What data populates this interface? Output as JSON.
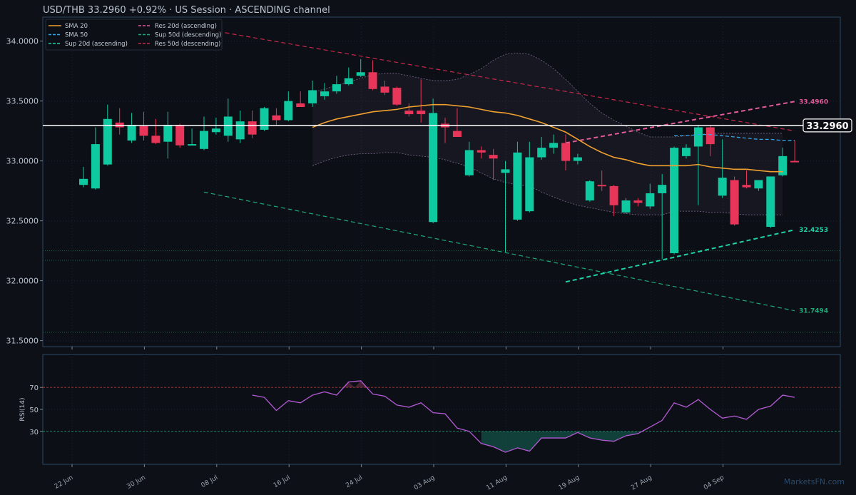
{
  "header": {
    "pair": "USD/THB",
    "price": "33.2960",
    "change": "+0.92%",
    "session": "US Session",
    "channel": "ASCENDING channel",
    "sep": "·"
  },
  "watermark": "MarketsFN.com",
  "colors": {
    "bg": "#0d1017",
    "panel_border": "#2b4a66",
    "up": "#0fc9a0",
    "down": "#e8365a",
    "sma20": "#f0a030",
    "sma50": "#2fa5e8",
    "res_asc": "#e35a9a",
    "res_desc": "#c8284a",
    "sup_asc": "#1fd2a6",
    "sup_desc": "#1fa878",
    "rsi": "#b45ad6",
    "price_line": "#ffffff",
    "text": "#b9c3cf"
  },
  "chart_data": [
    {
      "type": "candlestick",
      "title": "USD/THB",
      "ylim": [
        31.45,
        34.2
      ],
      "y_ticks": [
        31.5,
        32.0,
        32.5,
        33.0,
        33.5,
        34.0
      ],
      "y_tick_labels": [
        "31.5000",
        "32.0000",
        "32.5000",
        "33.0000",
        "33.5000",
        "34.0000"
      ],
      "x_tick_labels": [
        "22 Jun",
        "30 Jun",
        "08 Jul",
        "16 Jul",
        "24 Jul",
        "03 Aug",
        "11 Aug",
        "19 Aug",
        "27 Aug",
        "04 Sep"
      ],
      "x_tick_index": [
        0,
        6,
        12,
        18,
        24,
        30,
        36,
        42,
        48,
        54
      ],
      "grid": true,
      "legend_position": "top-left",
      "current_price": 33.296,
      "current_price_label": "33.2960",
      "candles": [
        {
          "o": 32.8,
          "h": 32.95,
          "l": 32.78,
          "c": 32.85
        },
        {
          "o": 32.77,
          "h": 33.28,
          "l": 32.76,
          "c": 33.14
        },
        {
          "o": 32.97,
          "h": 33.47,
          "l": 32.96,
          "c": 33.35
        },
        {
          "o": 33.32,
          "h": 33.44,
          "l": 33.22,
          "c": 33.28
        },
        {
          "o": 33.17,
          "h": 33.4,
          "l": 33.15,
          "c": 33.3
        },
        {
          "o": 33.29,
          "h": 33.41,
          "l": 33.17,
          "c": 33.21
        },
        {
          "o": 33.21,
          "h": 33.35,
          "l": 33.14,
          "c": 33.15
        },
        {
          "o": 33.16,
          "h": 33.41,
          "l": 33.02,
          "c": 33.3
        },
        {
          "o": 33.3,
          "h": 33.31,
          "l": 33.11,
          "c": 33.13
        },
        {
          "o": 33.14,
          "h": 33.27,
          "l": 33.13,
          "c": 33.14
        },
        {
          "o": 33.1,
          "h": 33.37,
          "l": 33.09,
          "c": 33.25
        },
        {
          "o": 33.24,
          "h": 33.36,
          "l": 33.22,
          "c": 33.27
        },
        {
          "o": 33.21,
          "h": 33.52,
          "l": 33.16,
          "c": 33.37
        },
        {
          "o": 33.18,
          "h": 33.42,
          "l": 33.15,
          "c": 33.33
        },
        {
          "o": 33.33,
          "h": 33.42,
          "l": 33.19,
          "c": 33.22
        },
        {
          "o": 33.26,
          "h": 33.45,
          "l": 33.25,
          "c": 33.44
        },
        {
          "o": 33.38,
          "h": 33.44,
          "l": 33.3,
          "c": 33.34
        },
        {
          "o": 33.34,
          "h": 33.58,
          "l": 33.33,
          "c": 33.5
        },
        {
          "o": 33.48,
          "h": 33.58,
          "l": 33.45,
          "c": 33.45
        },
        {
          "o": 33.48,
          "h": 33.67,
          "l": 33.45,
          "c": 33.59
        },
        {
          "o": 33.54,
          "h": 33.65,
          "l": 33.51,
          "c": 33.58
        },
        {
          "o": 33.58,
          "h": 33.71,
          "l": 33.56,
          "c": 33.64
        },
        {
          "o": 33.64,
          "h": 33.78,
          "l": 33.63,
          "c": 33.69
        },
        {
          "o": 33.71,
          "h": 33.85,
          "l": 33.7,
          "c": 33.74
        },
        {
          "o": 33.74,
          "h": 33.84,
          "l": 33.59,
          "c": 33.6
        },
        {
          "o": 33.62,
          "h": 33.67,
          "l": 33.55,
          "c": 33.57
        },
        {
          "o": 33.61,
          "h": 33.62,
          "l": 33.46,
          "c": 33.47
        },
        {
          "o": 33.42,
          "h": 33.48,
          "l": 33.37,
          "c": 33.39
        },
        {
          "o": 33.42,
          "h": 33.68,
          "l": 33.32,
          "c": 33.39
        },
        {
          "o": 32.49,
          "h": 33.52,
          "l": 32.48,
          "c": 33.4
        },
        {
          "o": 33.31,
          "h": 33.36,
          "l": 33.15,
          "c": 33.28
        },
        {
          "o": 33.25,
          "h": 33.44,
          "l": 33.2,
          "c": 33.2
        },
        {
          "o": 32.88,
          "h": 33.16,
          "l": 32.87,
          "c": 33.09
        },
        {
          "o": 33.09,
          "h": 33.12,
          "l": 33.02,
          "c": 33.07
        },
        {
          "o": 33.05,
          "h": 33.1,
          "l": 32.84,
          "c": 33.02
        },
        {
          "o": 32.9,
          "h": 33.0,
          "l": 32.24,
          "c": 32.93
        },
        {
          "o": 32.51,
          "h": 33.16,
          "l": 32.5,
          "c": 33.07
        },
        {
          "o": 32.58,
          "h": 33.16,
          "l": 32.57,
          "c": 33.03
        },
        {
          "o": 33.03,
          "h": 33.2,
          "l": 33.01,
          "c": 33.11
        },
        {
          "o": 33.11,
          "h": 33.22,
          "l": 33.06,
          "c": 33.15
        },
        {
          "o": 33.15,
          "h": 33.22,
          "l": 32.92,
          "c": 33.0
        },
        {
          "o": 33.0,
          "h": 33.06,
          "l": 32.97,
          "c": 33.03
        },
        {
          "o": 32.67,
          "h": 32.84,
          "l": 32.66,
          "c": 32.83
        },
        {
          "o": 32.8,
          "h": 32.92,
          "l": 32.75,
          "c": 32.79
        },
        {
          "o": 32.79,
          "h": 32.8,
          "l": 32.54,
          "c": 32.63
        },
        {
          "o": 32.57,
          "h": 32.69,
          "l": 32.56,
          "c": 32.67
        },
        {
          "o": 32.67,
          "h": 32.69,
          "l": 32.62,
          "c": 32.65
        },
        {
          "o": 32.62,
          "h": 32.81,
          "l": 32.6,
          "c": 32.73
        },
        {
          "o": 32.73,
          "h": 32.89,
          "l": 32.18,
          "c": 32.8
        },
        {
          "o": 32.23,
          "h": 33.12,
          "l": 32.22,
          "c": 33.11
        },
        {
          "o": 33.04,
          "h": 33.14,
          "l": 33.02,
          "c": 33.11
        },
        {
          "o": 33.12,
          "h": 33.3,
          "l": 32.63,
          "c": 33.28
        },
        {
          "o": 33.28,
          "h": 33.3,
          "l": 33.04,
          "c": 33.14
        },
        {
          "o": 32.71,
          "h": 33.18,
          "l": 32.69,
          "c": 32.86
        },
        {
          "o": 32.84,
          "h": 32.87,
          "l": 32.46,
          "c": 32.47
        },
        {
          "o": 32.8,
          "h": 32.92,
          "l": 32.77,
          "c": 32.78
        },
        {
          "o": 32.77,
          "h": 32.84,
          "l": 32.75,
          "c": 32.84
        },
        {
          "o": 32.45,
          "h": 32.87,
          "l": 32.44,
          "c": 32.87
        },
        {
          "o": 32.88,
          "h": 33.11,
          "l": 32.87,
          "c": 33.04
        },
        {
          "o": 33.0,
          "h": 33.17,
          "l": 32.99,
          "c": 32.99
        }
      ],
      "sma20": {
        "start": 19,
        "values": [
          33.28,
          33.32,
          33.35,
          33.37,
          33.39,
          33.41,
          33.42,
          33.43,
          33.45,
          33.46,
          33.47,
          33.47,
          33.46,
          33.45,
          33.43,
          33.41,
          33.4,
          33.38,
          33.35,
          33.32,
          33.28,
          33.24,
          33.18,
          33.12,
          33.07,
          33.03,
          33.01,
          32.98,
          32.96,
          32.96,
          32.96,
          32.96,
          32.97,
          32.95,
          32.94,
          32.93,
          32.93,
          32.92,
          32.91,
          32.91
        ]
      },
      "bollinger": {
        "start": 19,
        "upper": [
          33.57,
          33.6,
          33.63,
          33.66,
          33.69,
          33.72,
          33.73,
          33.73,
          33.71,
          33.69,
          33.67,
          33.67,
          33.68,
          33.72,
          33.77,
          33.84,
          33.89,
          33.9,
          33.89,
          33.84,
          33.77,
          33.68,
          33.58,
          33.48,
          33.4,
          33.34,
          33.29,
          33.24,
          33.2,
          33.2,
          33.2,
          33.21,
          33.22,
          33.23,
          33.23,
          33.23,
          33.23,
          33.23,
          33.23,
          33.23
        ],
        "lower": [
          32.96,
          33.0,
          33.03,
          33.05,
          33.06,
          33.06,
          33.07,
          33.07,
          33.05,
          33.04,
          33.03,
          33.01,
          32.98,
          32.95,
          32.9,
          32.85,
          32.82,
          32.8,
          32.79,
          32.74,
          32.7,
          32.66,
          32.63,
          32.61,
          32.59,
          32.57,
          32.56,
          32.55,
          32.55,
          32.55,
          32.58,
          32.58,
          32.58,
          32.57,
          32.57,
          32.56,
          32.55,
          32.55,
          32.55,
          32.55
        ]
      },
      "sma50": {
        "start": 49,
        "values": [
          33.21,
          33.21,
          33.22,
          33.22,
          33.21,
          33.2,
          33.19,
          33.18,
          33.18,
          33.17,
          33.17
        ]
      },
      "trendlines": [
        {
          "name": "Res 20d (ascending)",
          "x0": 40,
          "y0": 33.15,
          "x1": 59,
          "y1": 33.496,
          "label": "33.4960"
        },
        {
          "name": "Sup 20d (ascending)",
          "x0": 40,
          "y0": 31.99,
          "x1": 59,
          "y1": 32.4253,
          "label": "32.4253"
        },
        {
          "name": "Res 50d (descending)",
          "x0": 10,
          "y0": 34.1,
          "x1": 59,
          "y1": 33.25,
          "label": ""
        },
        {
          "name": "Sup 50d (descending)",
          "x0": 10,
          "y0": 32.74,
          "x1": 59,
          "y1": 31.7494,
          "label": "31.7494"
        }
      ],
      "horizontal_levels": [
        32.25,
        32.17,
        31.57
      ],
      "legend": [
        {
          "label": "SMA 20",
          "style": "solid",
          "color_key": "sma20"
        },
        {
          "label": "SMA 50",
          "style": "dashed",
          "color_key": "sma50"
        },
        {
          "label": "Sup 20d (ascending)",
          "style": "dashed",
          "color_key": "sup_asc"
        },
        {
          "label": "Res 20d (ascending)",
          "style": "dashed",
          "color_key": "res_asc"
        },
        {
          "label": "Sup 50d (descending)",
          "style": "dashed",
          "color_key": "sup_desc"
        },
        {
          "label": "Res 50d (descending)",
          "style": "dashed",
          "color_key": "res_desc"
        }
      ]
    },
    {
      "type": "line",
      "ylabel": "RSI(14)",
      "ylim": [
        0,
        100
      ],
      "y_ticks": [
        30,
        50,
        70
      ],
      "y_tick_labels": [
        "30",
        "50",
        "70"
      ],
      "overbought": 70,
      "oversold": 30,
      "start": 14,
      "values": [
        63,
        61,
        49,
        58,
        56,
        63,
        66,
        63,
        75,
        76,
        64,
        62,
        54,
        52,
        56,
        47,
        46,
        33,
        30,
        19,
        16,
        11,
        15,
        12,
        24,
        24,
        24,
        29,
        24,
        22,
        21,
        26,
        28,
        34,
        40,
        56,
        52,
        59,
        50,
        42,
        44,
        41,
        50,
        53,
        63,
        61
      ]
    }
  ]
}
